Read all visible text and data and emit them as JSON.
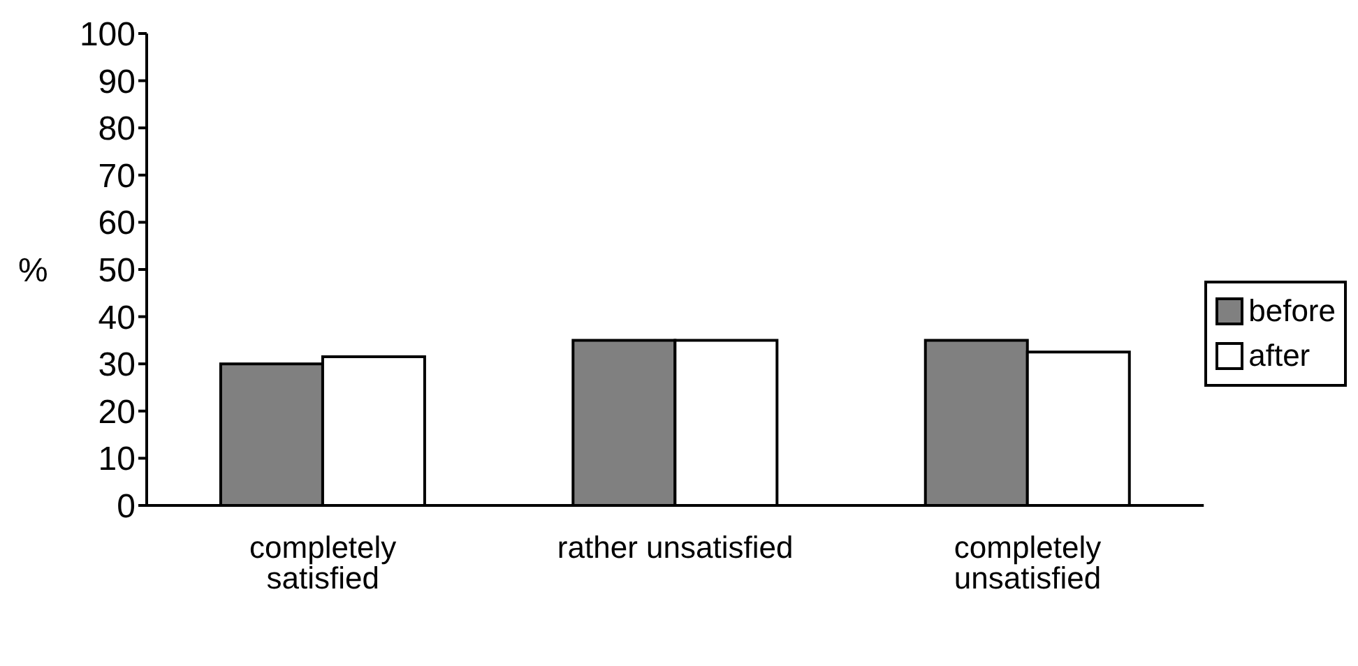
{
  "chart_data": {
    "type": "bar",
    "ylabel": "%",
    "categories": [
      "completely satisfied",
      "rather unsatisfied",
      "completely unsatisfied"
    ],
    "series": [
      {
        "name": "before",
        "color": "#808080",
        "values": [
          30,
          35,
          35
        ]
      },
      {
        "name": "after",
        "color": "#ffffff",
        "values": [
          31.5,
          35,
          32.5
        ]
      }
    ],
    "ylim": [
      0,
      100
    ],
    "yticks": [
      0,
      10,
      20,
      30,
      40,
      50,
      60,
      70,
      80,
      90,
      100
    ],
    "grid": false,
    "legend": "right"
  }
}
